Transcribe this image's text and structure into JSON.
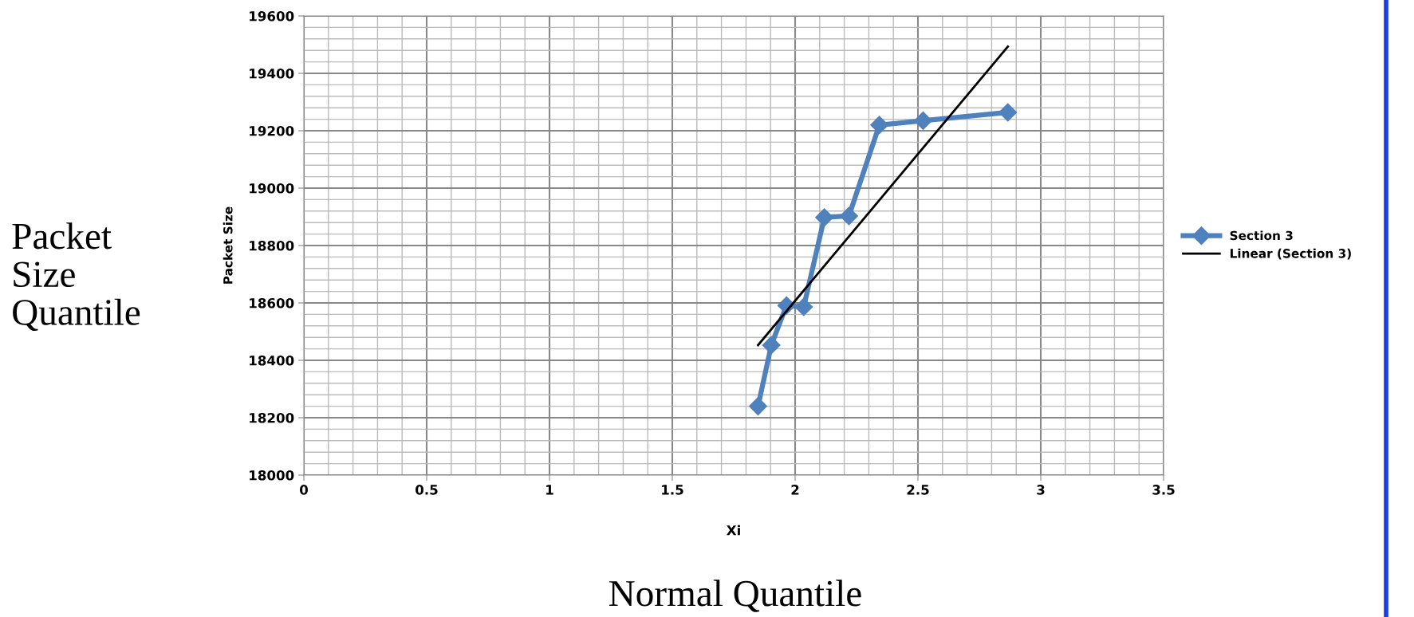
{
  "chart_data": {
    "type": "line",
    "xlabel": "Xi",
    "ylabel": "Packet Size",
    "series": [
      {
        "name": "Section 3",
        "color": "#4f81bd",
        "marker": "diamond",
        "x": [
          1.849,
          1.903,
          1.965,
          2.035,
          2.119,
          2.219,
          2.343,
          2.521,
          2.866
        ],
        "values": [
          18240,
          18453,
          18591,
          18586,
          18898,
          18903,
          19220,
          19235,
          19264
        ]
      },
      {
        "name": "Linear (Section 3)",
        "color": "#000000",
        "marker": "none",
        "x": [
          1.849,
          2.866
        ],
        "values": [
          18453,
          19493
        ]
      }
    ],
    "xlim": [
      0,
      3.5
    ],
    "xticks": [
      0,
      0.5,
      1,
      1.5,
      2,
      2.5,
      3,
      3.5
    ],
    "ylim": [
      18000,
      19600
    ],
    "yticks": [
      18000,
      18200,
      18400,
      18600,
      18800,
      19000,
      19200,
      19400,
      19600
    ],
    "grid": true,
    "legend": "right",
    "annotations": [
      "Packet Size Quantile",
      "Normal Quantile"
    ]
  }
}
